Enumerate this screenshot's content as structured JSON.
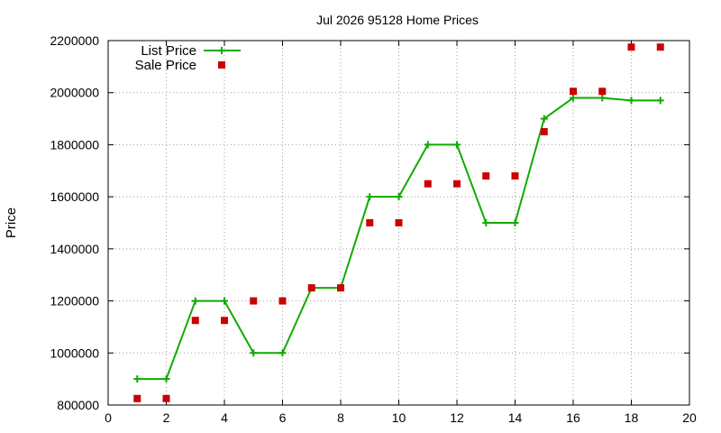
{
  "chart_data": {
    "type": "line",
    "title": "Jul 2026 95128 Home Prices",
    "xlabel": "",
    "ylabel": "Price",
    "xlim": [
      0,
      20
    ],
    "ylim": [
      800000,
      2200000
    ],
    "xticks": [
      0,
      2,
      4,
      6,
      8,
      10,
      12,
      14,
      16,
      18,
      20
    ],
    "yticks": [
      800000,
      1000000,
      1200000,
      1400000,
      1600000,
      1800000,
      2000000,
      2200000
    ],
    "grid": true,
    "legend": "top-left",
    "series": [
      {
        "name": "List Price",
        "style": "line-with-plus-markers",
        "color": "#11aa00",
        "x": [
          1,
          2,
          3,
          4,
          5,
          6,
          7,
          8,
          9,
          10,
          11,
          12,
          13,
          14,
          15,
          16,
          17,
          18,
          19
        ],
        "values": [
          900000,
          900000,
          1200000,
          1200000,
          1000000,
          1000000,
          1250000,
          1250000,
          1600000,
          1600000,
          1800000,
          1800000,
          1500000,
          1500000,
          1900000,
          1980000,
          1980000,
          1970000,
          1970000
        ]
      },
      {
        "name": "Sale Price",
        "style": "square-markers",
        "color": "#cc0000",
        "x": [
          1,
          2,
          3,
          4,
          5,
          6,
          7,
          8,
          9,
          10,
          11,
          12,
          13,
          14,
          15,
          16,
          17,
          18,
          19
        ],
        "values": [
          825000,
          825000,
          1125000,
          1125000,
          1200000,
          1200000,
          1250000,
          1250000,
          1500000,
          1500000,
          1650000,
          1650000,
          1680000,
          1680000,
          1850000,
          2005000,
          2005000,
          2175000,
          2175000
        ]
      }
    ]
  }
}
